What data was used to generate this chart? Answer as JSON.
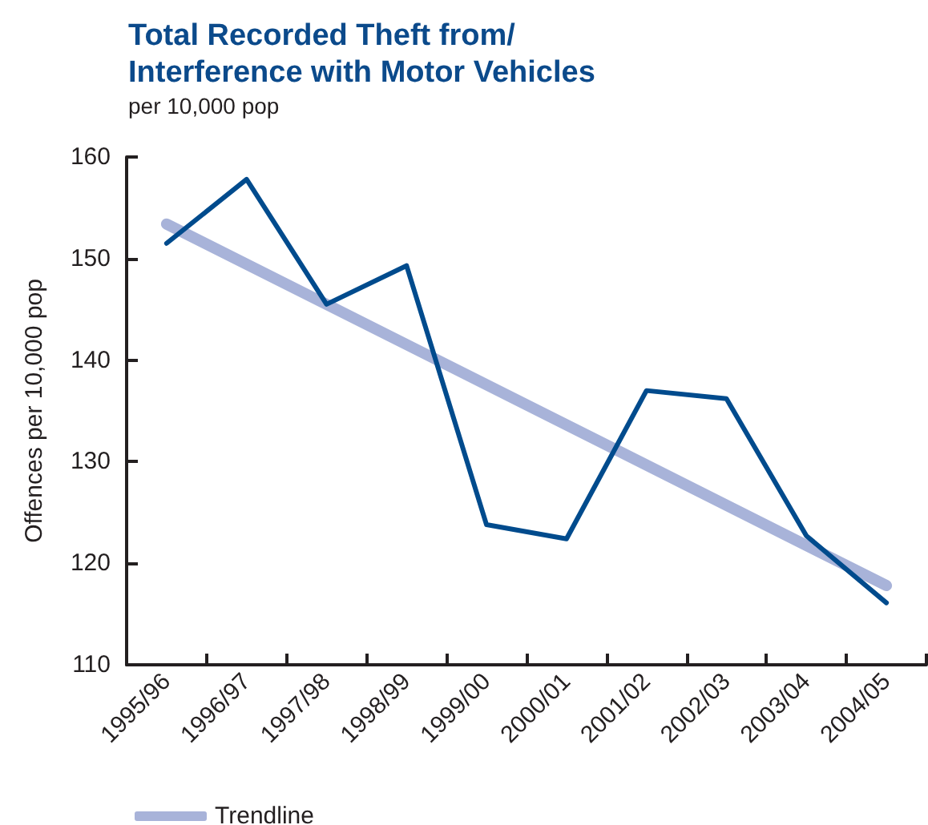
{
  "chart_data": {
    "type": "line",
    "title": "Total Recorded Theft from/ Interference with Motor Vehicles",
    "subtitle": "per 10,000 pop",
    "ylabel": "Offences per 10,000 pop",
    "categories": [
      "1995/96",
      "1996/97",
      "1997/98",
      "1998/99",
      "1999/00",
      "2000/01",
      "2001/02",
      "2002/03",
      "2003/04",
      "2004/05"
    ],
    "series": [
      {
        "color": "#004b8d",
        "values": [
          151.5,
          157.8,
          145.5,
          149.3,
          123.8,
          122.4,
          137.0,
          136.2,
          122.7,
          116.1
        ]
      },
      {
        "name": "Trendline",
        "type": "line",
        "color": "#a8b3d9",
        "x": [
          "1995/96",
          "2004/05"
        ],
        "values": [
          153.4,
          117.8
        ]
      }
    ],
    "ylim": [
      110,
      160
    ],
    "yticks": [
      110,
      120,
      130,
      140,
      150,
      160
    ],
    "grid": false,
    "legend": "bottom left",
    "marker": "none",
    "line_style": "solid"
  }
}
